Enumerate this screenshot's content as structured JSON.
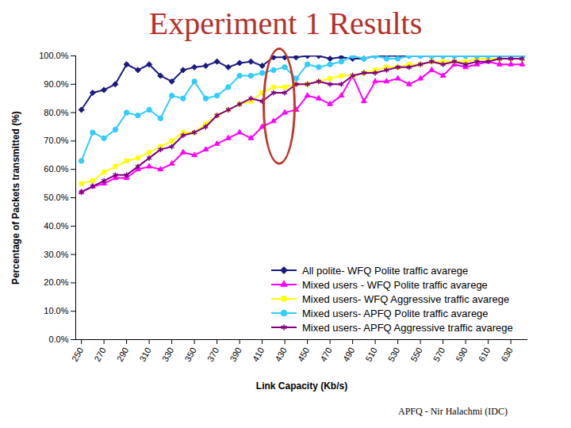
{
  "chart_data": {
    "type": "line",
    "title": "Experiment 1 Results",
    "caption": "APFQ - Nir Halachmi (IDC)",
    "x_label": "Link Capacity (Kb/s)",
    "y_label": "Percentage of Packets transmitted (%)",
    "x": [
      250,
      260,
      270,
      280,
      290,
      300,
      310,
      320,
      330,
      340,
      350,
      360,
      370,
      380,
      390,
      400,
      410,
      420,
      430,
      440,
      450,
      460,
      470,
      480,
      490,
      500,
      510,
      520,
      530,
      540,
      550,
      560,
      570,
      580,
      590,
      600,
      610,
      620,
      630,
      640
    ],
    "xlim": [
      245,
      645
    ],
    "xticks": [
      250,
      270,
      290,
      310,
      330,
      350,
      370,
      390,
      410,
      430,
      450,
      470,
      490,
      510,
      530,
      550,
      570,
      590,
      610,
      630
    ],
    "ylim": [
      0,
      100
    ],
    "yticks": [
      {
        "value": 0,
        "label": "0.0%"
      },
      {
        "value": 10,
        "label": "10.0%"
      },
      {
        "value": 20,
        "label": "20.0%"
      },
      {
        "value": 30,
        "label": "30.0%"
      },
      {
        "value": 40,
        "label": "40.0%"
      },
      {
        "value": 50,
        "label": "50.0%"
      },
      {
        "value": 60,
        "label": "60.0%"
      },
      {
        "value": 70,
        "label": "70.0%"
      },
      {
        "value": 80,
        "label": "80.0%"
      },
      {
        "value": 90,
        "label": "90.0%"
      },
      {
        "value": 100,
        "label": "100.0%"
      }
    ],
    "grid": false,
    "legend": "lower right",
    "series": [
      {
        "name": "All polite- WFQ Polite traffic avarege",
        "color": "#1a1a80",
        "marker": "diamond",
        "values": [
          81,
          87,
          88,
          90,
          97,
          95,
          97,
          93,
          91,
          95,
          96,
          96.5,
          98,
          96,
          97.5,
          98,
          96.5,
          99.5,
          99.5,
          99.5,
          100,
          100,
          99,
          99.5,
          99,
          99,
          100,
          100,
          100,
          100,
          100,
          100,
          100,
          100,
          100,
          100,
          100,
          100,
          100,
          100
        ]
      },
      {
        "name": "Mixed users - WFQ Polite traffic avarege",
        "color": "#ff00ff",
        "marker": "triangle",
        "values": [
          52,
          54,
          55,
          57,
          57,
          60,
          61,
          60,
          62,
          66,
          65,
          67,
          69,
          71,
          73,
          71,
          75,
          77,
          80,
          81,
          86,
          85,
          83,
          86,
          93,
          84,
          91,
          91,
          92,
          90,
          92,
          95,
          93,
          97,
          96,
          97,
          98,
          97,
          97,
          97
        ]
      },
      {
        "name": "Mixed users- WFQ Aggressive traffic avarege",
        "color": "#ffff00",
        "marker": "square",
        "values": [
          55,
          56,
          59,
          61,
          63,
          64,
          66,
          68,
          70,
          73,
          73,
          76,
          79,
          81,
          83,
          84,
          87,
          89,
          89,
          90,
          90,
          91,
          92,
          93,
          93,
          94,
          95,
          96,
          96,
          97,
          97,
          98,
          98,
          98,
          98,
          99,
          99,
          99,
          99,
          99
        ]
      },
      {
        "name": "Mixed users- APFQ Polite traffic avarege",
        "color": "#33ccff",
        "marker": "circle",
        "values": [
          63,
          73,
          71,
          74,
          80,
          79,
          81,
          78,
          86,
          85,
          91,
          85,
          86,
          89,
          93,
          93,
          94,
          95,
          96,
          92,
          97,
          96,
          97,
          98,
          100,
          99,
          100,
          99,
          99,
          100,
          100,
          100,
          100,
          100,
          100,
          100,
          100,
          100,
          100,
          100
        ]
      },
      {
        "name": "Mixed users- APFQ Aggressive traffic avarege",
        "color": "#800080",
        "marker": "asterisk",
        "values": [
          52,
          54,
          56,
          58,
          58,
          61,
          64,
          67,
          68,
          72,
          73,
          75,
          79,
          81,
          83,
          85,
          84,
          87,
          87,
          90,
          90,
          91,
          90,
          90,
          93,
          94,
          94,
          95,
          96,
          96,
          97,
          98,
          97,
          98,
          97,
          98,
          98,
          99,
          99,
          99
        ]
      }
    ]
  }
}
